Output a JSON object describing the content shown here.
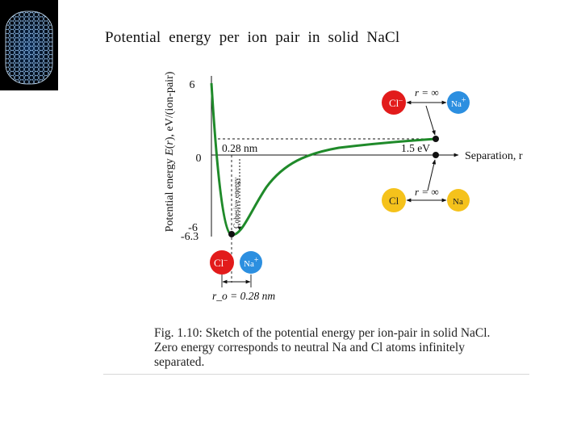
{
  "title": "Potential  energy  per  ion  pair  in  solid  NaCl",
  "chart_data": {
    "type": "line",
    "title": "Potential  energy  per  ion  pair  in  solid  NaCl",
    "xlabel": "Separation, r",
    "ylabel": "Potential energy E(r), eV/(ion-pair)",
    "ylim": [
      -6.3,
      6
    ],
    "yticks": [
      "6",
      "0",
      "-6",
      "-6.3"
    ],
    "curve_y": [
      6,
      -6.3,
      0,
      1.5
    ],
    "r0_label": "0.28 nm",
    "r0_bottom_label": "r_o = 0.28 nm",
    "cohesive_label": "Cohesive  energy",
    "ionization_label": "1.5 eV",
    "ion_pairs": {
      "ions_at_infinity": {
        "anion": "Cl",
        "anion_sup": "–",
        "cation": "Na",
        "cation_sup": "+",
        "separation": "r = ∞"
      },
      "atoms_at_infinity": {
        "anion": "Cl",
        "cation": "Na",
        "separation": "r = ∞"
      },
      "ions_in_solid": {
        "anion": "Cl",
        "anion_sup": "–",
        "cation": "Na",
        "cation_sup": "+"
      }
    },
    "colors": {
      "curve": "#1f8a2a",
      "cl_ion": "#e21b1b",
      "na_ion": "#2c8fe0",
      "atom": "#f5c21b"
    }
  },
  "caption": [
    "Fig. 1.10: Sketch of the potential energy per ion-pair in solid NaCl.",
    "Zero energy corresponds to neutral Na and Cl atoms infinitely",
    "separated."
  ]
}
